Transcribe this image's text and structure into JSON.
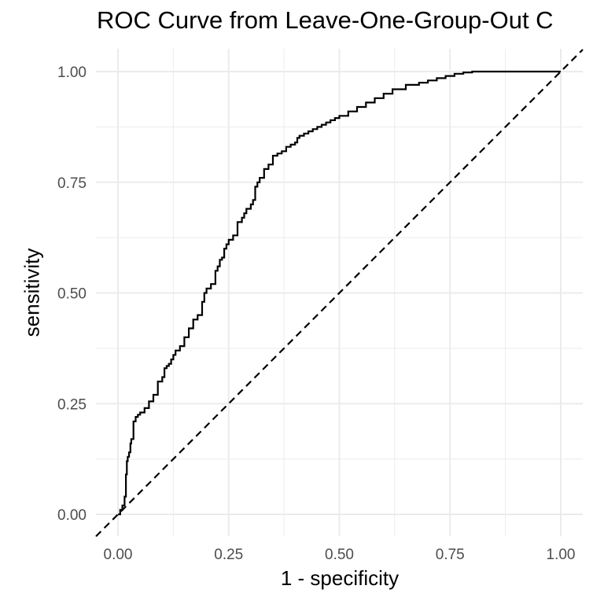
{
  "chart_data": {
    "type": "line",
    "title": "ROC Curve from Leave-One-Group-Out C",
    "xlabel": "1 - specificity",
    "ylabel": "sensitivity",
    "xlim": [
      0,
      1
    ],
    "ylim": [
      0,
      1
    ],
    "x_ticks": [
      "0.00",
      "0.25",
      "0.50",
      "0.75",
      "1.00"
    ],
    "y_ticks": [
      "0.00",
      "0.25",
      "0.50",
      "0.75",
      "1.00"
    ],
    "grid": true,
    "legend": "none",
    "colors": {
      "curve": "#000000",
      "reference": "#000000",
      "grid": "#ebebeb"
    },
    "series": [
      {
        "x": [
          0.0,
          0.005,
          0.01,
          0.015,
          0.018,
          0.02,
          0.022,
          0.025,
          0.028,
          0.03,
          0.035,
          0.035,
          0.04,
          0.045,
          0.05,
          0.06,
          0.07,
          0.08,
          0.09,
          0.1,
          0.105,
          0.11,
          0.115,
          0.12,
          0.125,
          0.13,
          0.14,
          0.15,
          0.16,
          0.17,
          0.18,
          0.19,
          0.195,
          0.2,
          0.21,
          0.22,
          0.225,
          0.23,
          0.235,
          0.24,
          0.245,
          0.25,
          0.26,
          0.27,
          0.28,
          0.285,
          0.29,
          0.3,
          0.305,
          0.31,
          0.315,
          0.32,
          0.33,
          0.34,
          0.35,
          0.36,
          0.37,
          0.38,
          0.385,
          0.39,
          0.4,
          0.405,
          0.41,
          0.42,
          0.43,
          0.44,
          0.45,
          0.46,
          0.47,
          0.48,
          0.49,
          0.5,
          0.52,
          0.54,
          0.56,
          0.58,
          0.6,
          0.62,
          0.65,
          0.68,
          0.7,
          0.72,
          0.74,
          0.76,
          0.78,
          0.8,
          0.82,
          0.85,
          0.88,
          0.9,
          0.92,
          0.95,
          0.97,
          1.0
        ],
        "y": [
          0.0,
          0.01,
          0.02,
          0.04,
          0.09,
          0.12,
          0.13,
          0.14,
          0.16,
          0.17,
          0.2,
          0.21,
          0.22,
          0.225,
          0.23,
          0.24,
          0.255,
          0.27,
          0.3,
          0.31,
          0.33,
          0.335,
          0.34,
          0.35,
          0.36,
          0.37,
          0.38,
          0.4,
          0.42,
          0.44,
          0.45,
          0.48,
          0.5,
          0.51,
          0.52,
          0.55,
          0.56,
          0.575,
          0.58,
          0.6,
          0.61,
          0.62,
          0.63,
          0.66,
          0.67,
          0.68,
          0.69,
          0.7,
          0.71,
          0.74,
          0.75,
          0.76,
          0.78,
          0.79,
          0.81,
          0.815,
          0.82,
          0.83,
          0.83,
          0.835,
          0.84,
          0.85,
          0.855,
          0.86,
          0.865,
          0.87,
          0.875,
          0.88,
          0.885,
          0.89,
          0.895,
          0.9,
          0.91,
          0.92,
          0.93,
          0.94,
          0.95,
          0.96,
          0.97,
          0.975,
          0.98,
          0.985,
          0.99,
          0.995,
          0.998,
          1.0,
          1.0,
          1.0,
          1.0,
          1.0,
          1.0,
          1.0,
          1.0,
          1.0
        ]
      }
    ],
    "reference_line": {
      "style": "dashed",
      "from": [
        0,
        0
      ],
      "to": [
        1,
        1
      ]
    }
  }
}
